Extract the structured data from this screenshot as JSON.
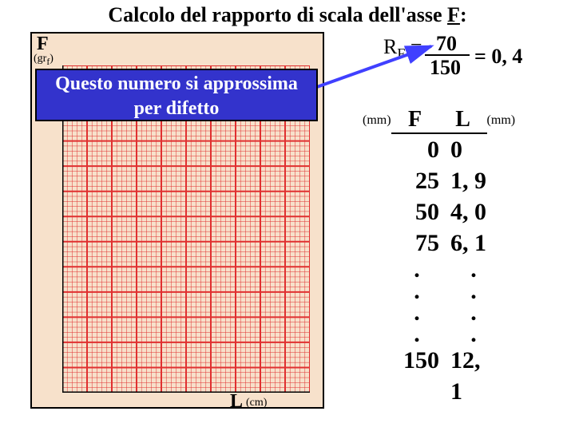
{
  "title": {
    "pre": "Calcolo del rapporto di scala dell'asse ",
    "axis": "F",
    "post": ":"
  },
  "axes": {
    "F_label": "F",
    "F_unit": "(gr",
    "F_unit_sub": "f",
    "F_unit_close": ")",
    "L_label": "L",
    "L_unit": "(cm)"
  },
  "callout": {
    "line1": "Questo numero si approssima",
    "line2": "per difetto"
  },
  "formula": {
    "lhs": "R",
    "lhs_sub": "F",
    "eq": " = ",
    "numerator": "70",
    "denominator": "150",
    "result": "= 0, 4"
  },
  "table": {
    "unit_left": "(mm)",
    "head_F": "F",
    "head_L": "L",
    "unit_right": "(mm)",
    "rows": [
      {
        "F": "0",
        "L": "0"
      },
      {
        "F": "25",
        "L": "1, 9"
      },
      {
        "F": "50",
        "L": "4, 0"
      },
      {
        "F": "75",
        "L": "6, 1"
      },
      {
        "F": ".",
        "L": "."
      },
      {
        "F": ".",
        "L": "."
      },
      {
        "F": ".",
        "L": "."
      },
      {
        "F": ".",
        "L": "."
      },
      {
        "F": "150",
        "L": "12, 1"
      }
    ]
  },
  "grid": {
    "cols_major": 10,
    "rows_major": 13,
    "minor_per_major": 5,
    "line_color": "#e03030",
    "bg_color": "#f7e1cb"
  },
  "colors": {
    "callout_bg": "#3333cc",
    "callout_fg": "#ffffff"
  }
}
